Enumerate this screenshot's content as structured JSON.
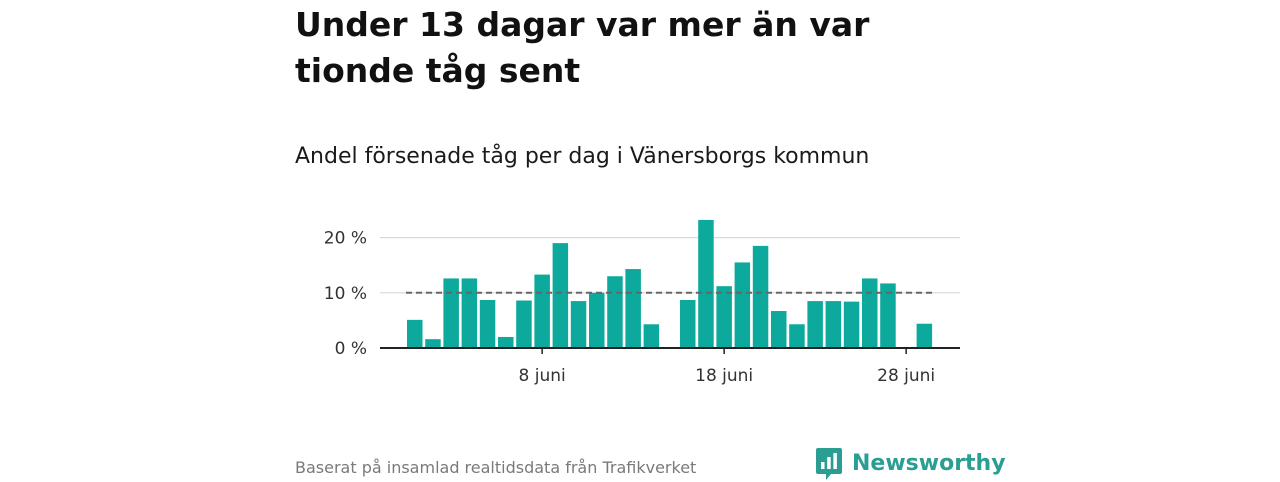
{
  "title": "Under 13 dagar var mer än var tionde tåg sent",
  "subtitle": "Andel försenade tåg per dag i Vänersborgs kommun",
  "source": "Baserat på insamlad realtidsdata från Trafikverket",
  "brand": {
    "name": "Newsworthy",
    "icon": "newsworthy-logo-icon",
    "color": "#2b9e93"
  },
  "colors": {
    "bar": "#0ea99d",
    "reference_line": "#666666",
    "grid": "#d9d9d9",
    "axis": "#222222"
  },
  "chart_data": {
    "type": "bar",
    "title": "Andel försenade tåg per dag i Vänersborgs kommun",
    "x_unit": "day of June",
    "x": [
      1,
      2,
      3,
      4,
      5,
      6,
      7,
      8,
      9,
      10,
      11,
      12,
      13,
      14,
      15,
      16,
      17,
      18,
      19,
      20,
      21,
      22,
      23,
      24,
      25,
      26,
      27,
      28,
      29
    ],
    "values": [
      5.1,
      1.6,
      12.6,
      12.6,
      8.7,
      2.0,
      8.6,
      13.3,
      19.0,
      8.5,
      10.0,
      13.0,
      14.3,
      4.3,
      null,
      8.7,
      23.2,
      11.2,
      15.5,
      18.5,
      6.7,
      4.3,
      8.5,
      8.5,
      8.4,
      12.6,
      11.7,
      null,
      4.4
    ],
    "ylim": [
      0,
      25
    ],
    "yticks": [
      0,
      10,
      20
    ],
    "ytick_labels": [
      "0 %",
      "10 %",
      "20 %"
    ],
    "xticks": [
      8,
      18,
      28
    ],
    "xtick_labels": [
      "8 juni",
      "18 juni",
      "28 juni"
    ],
    "reference_line": {
      "value": 10,
      "style": "dashed",
      "from_day": 1,
      "to_day": 29
    },
    "grid": true,
    "xlabel": "",
    "ylabel": ""
  }
}
